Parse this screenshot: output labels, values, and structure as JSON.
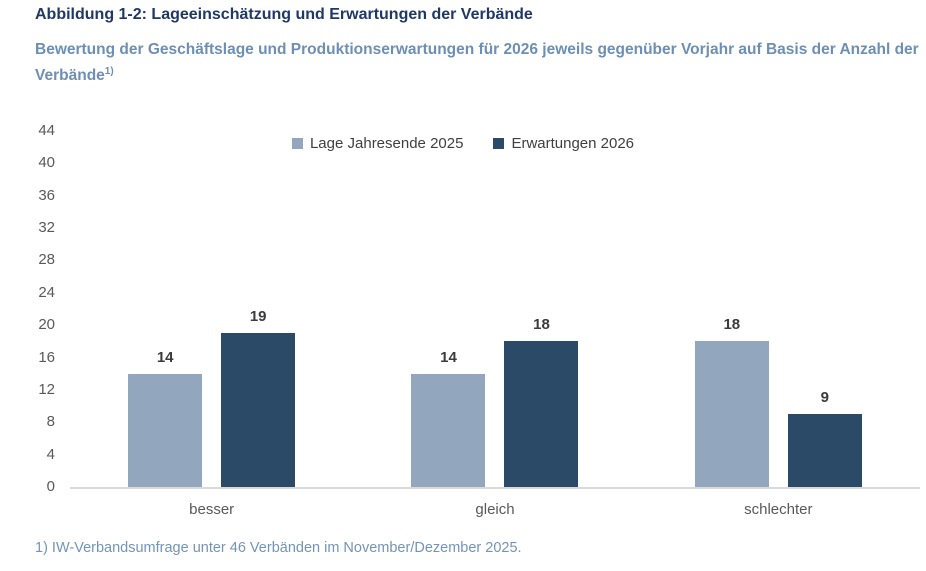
{
  "header": {
    "title": "Abbildung 1-2: Lageeinschätzung und Erwartungen der Verbände",
    "subtitle": "Bewertung der Geschäftslage und Produktionserwartungen für 2026 jeweils gegenüber Vorjahr auf Basis der Anzahl der Verbände",
    "subtitle_footnote_marker": "1)"
  },
  "chart_data": {
    "type": "bar",
    "title": "",
    "categories": [
      "besser",
      "gleich",
      "schlechter"
    ],
    "series": [
      {
        "name": "Lage Jahresende 2025",
        "color": "#92a7bd",
        "values": [
          14,
          14,
          18
        ]
      },
      {
        "name": "Erwartungen 2026",
        "color": "#2a4a68",
        "values": [
          19,
          18,
          9
        ]
      }
    ],
    "xlabel": "",
    "ylabel": "",
    "ylim": [
      0,
      44
    ],
    "yticks": [
      0,
      4,
      8,
      12,
      16,
      20,
      24,
      28,
      32,
      36,
      40,
      44
    ],
    "grid": false,
    "legend_position": "top-center",
    "value_labels": true
  },
  "footnote": {
    "text": "1) IW-Verbandsumfrage unter 46 Verbänden im November/Dezember 2025."
  },
  "colors": {
    "title": "#1f3864",
    "subtitle": "#6d8fb3",
    "footnote": "#7394b8",
    "series_lage": "#92a7bd",
    "series_erwartungen": "#2a4a68",
    "axis_line": "#d9d9d9",
    "tick_label": "#595959",
    "category_label": "#595959",
    "value_label": "#3b3b3b",
    "background": "#ffffff"
  }
}
